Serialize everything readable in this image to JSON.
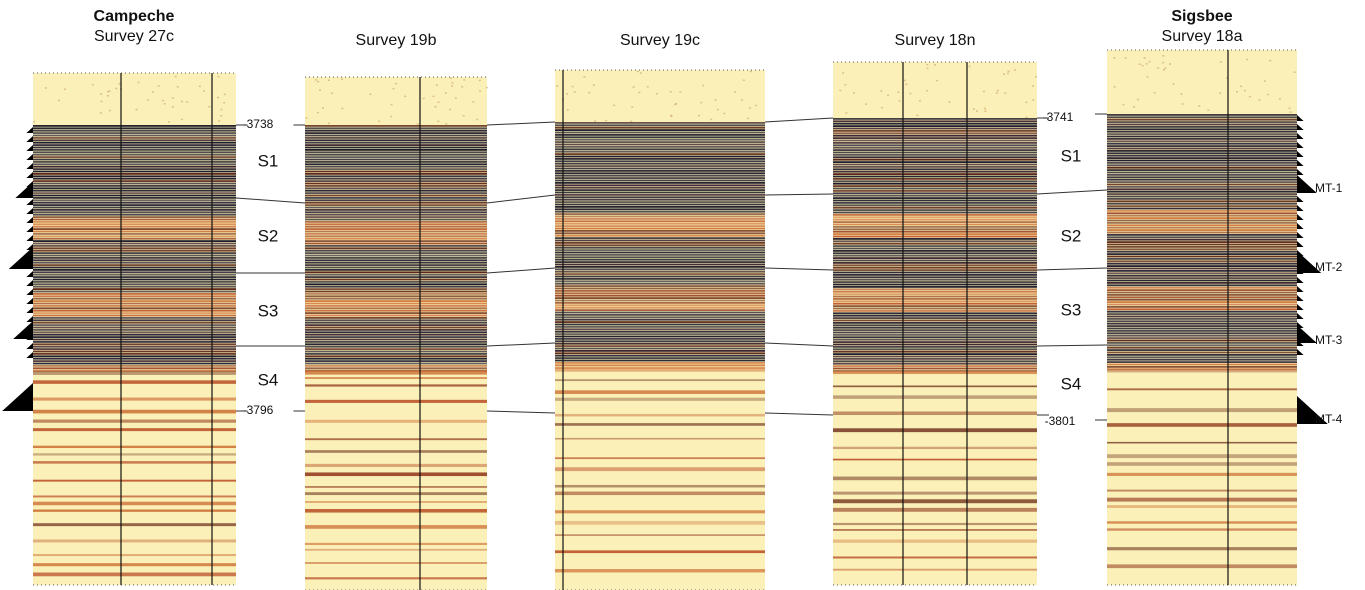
{
  "panels": [
    {
      "title": "Campeche",
      "subtitle": "Survey 27c"
    },
    {
      "subtitle": "Survey 19b"
    },
    {
      "subtitle": "Survey 19c"
    },
    {
      "subtitle": "Survey 18n"
    },
    {
      "title": "Sigsbee",
      "subtitle": "Survey 18a"
    }
  ],
  "left_markers": {
    "top_depth": "-3738",
    "units": [
      "S1",
      "S2",
      "S3",
      "S4"
    ],
    "bottom_depth": "-3796"
  },
  "right_markers": {
    "top_depth": "-3741",
    "units": [
      "S1",
      "S2",
      "S3",
      "S4"
    ],
    "bottom_depth": "-3801"
  },
  "mt_labels": [
    "MT-1",
    "MT-2",
    "MT-3",
    "MT-4"
  ]
}
